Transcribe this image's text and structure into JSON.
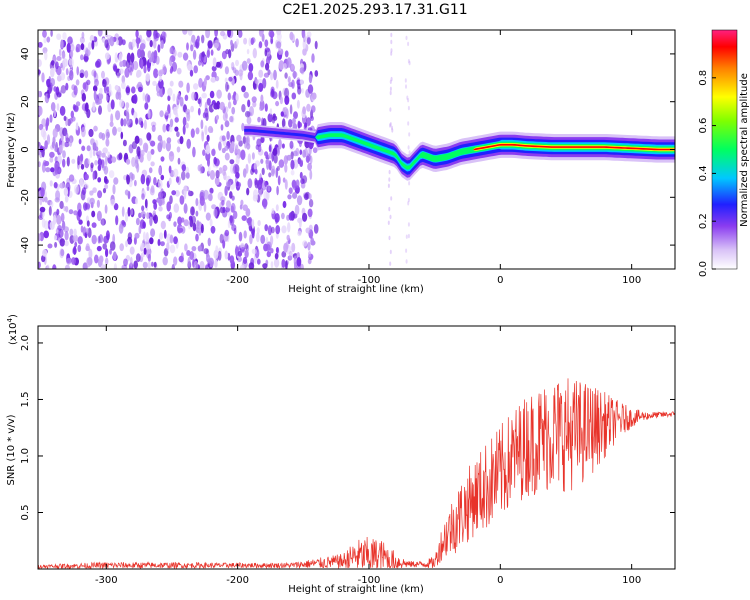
{
  "title": "C2E1.2025.293.17.31.G11",
  "chart_data": [
    {
      "type": "heatmap",
      "name": "spectrogram",
      "xlabel": "Height of straight line (km)",
      "ylabel": "Frequency (Hz)",
      "xlim": [
        -352,
        133
      ],
      "ylim": [
        -50,
        50
      ],
      "xticks": [
        "-300",
        "-200",
        "-100",
        "0",
        "100"
      ],
      "xtick_values": [
        -300,
        -200,
        -100,
        0,
        100
      ],
      "yticks": [
        "40",
        "20",
        "0",
        "-20",
        "-40"
      ],
      "ytick_values": [
        40,
        20,
        0,
        -20,
        -40
      ],
      "noise_region_x": [
        -352,
        -140
      ],
      "signal_trace": {
        "x": [
          -190,
          -170,
          -150,
          -140,
          -130,
          -120,
          -110,
          -100,
          -90,
          -80,
          -75,
          -70,
          -60,
          -50,
          -40,
          -30,
          -20,
          -10,
          0,
          10,
          20,
          40,
          60,
          80,
          100,
          120,
          133
        ],
        "y": [
          8,
          7,
          6,
          5,
          6,
          6,
          4,
          2,
          0,
          -2,
          -6,
          -8,
          -2,
          -4,
          -3,
          -1,
          0,
          1,
          2,
          2,
          1.5,
          1,
          1,
          1,
          0.5,
          0,
          0
        ]
      },
      "colorbar": {
        "label": "Normalized spectral amplitude",
        "ticks": [
          "0.0",
          "0.2",
          "0.4",
          "0.6",
          "0.8"
        ],
        "tick_values": [
          0.0,
          0.2,
          0.4,
          0.6,
          0.8
        ],
        "range": [
          0,
          1
        ]
      }
    },
    {
      "type": "line",
      "name": "snr",
      "xlabel": "Height of straight line (km)",
      "ylabel": "SNR (10 * v/v)",
      "scale_label": "(x10",
      "scale_exp": "4",
      "scale_close": ")",
      "color": "#e8332a",
      "xlim": [
        -352,
        133
      ],
      "ylim": [
        0,
        2.15
      ],
      "xticks": [
        "-300",
        "-200",
        "-100",
        "0",
        "100"
      ],
      "xtick_values": [
        -300,
        -200,
        -100,
        0,
        100
      ],
      "yticks": [
        "0.5",
        "1.0",
        "1.5",
        "2.0"
      ],
      "ytick_values": [
        0.5,
        1.0,
        1.5,
        2.0
      ],
      "envelope": {
        "x": [
          -352,
          -300,
          -200,
          -160,
          -120,
          -110,
          -100,
          -90,
          -80,
          -70,
          -60,
          -50,
          -45,
          -40,
          -30,
          -20,
          -10,
          0,
          10,
          20,
          30,
          40,
          50,
          60,
          70,
          80,
          90,
          100,
          110,
          120,
          133
        ],
        "base": [
          0.02,
          0.03,
          0.03,
          0.03,
          0.06,
          0.1,
          0.1,
          0.1,
          0.06,
          0.04,
          0.04,
          0.05,
          0.2,
          0.3,
          0.45,
          0.6,
          0.7,
          0.8,
          0.95,
          1.05,
          1.1,
          1.15,
          1.15,
          1.15,
          1.2,
          1.25,
          1.3,
          1.33,
          1.35,
          1.36,
          1.37
        ],
        "amp": [
          0.03,
          0.05,
          0.04,
          0.04,
          0.12,
          0.25,
          0.3,
          0.25,
          0.15,
          0.05,
          0.05,
          0.1,
          0.25,
          0.4,
          0.55,
          0.6,
          0.7,
          0.75,
          0.75,
          0.8,
          0.85,
          0.9,
          0.9,
          0.85,
          0.7,
          0.5,
          0.3,
          0.15,
          0.07,
          0.05,
          0.04
        ]
      }
    }
  ]
}
